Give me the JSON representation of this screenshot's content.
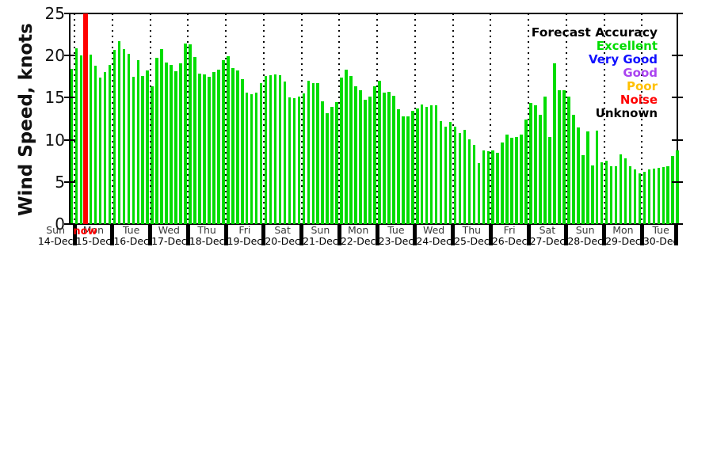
{
  "ylabel": "Wind Speed, knots",
  "now_marker": {
    "label": "now",
    "color": "#FF0000"
  },
  "legend": {
    "title": "Forecast Accuracy",
    "entries": [
      {
        "label": "Excellent",
        "color": "#00DC00"
      },
      {
        "label": "Very Good",
        "color": "#1010FF"
      },
      {
        "label": "Good",
        "color": "#AA44F0"
      },
      {
        "label": "Poor",
        "color": "#FFC000"
      },
      {
        "label": "Noise",
        "color": "#FF0000"
      },
      {
        "label": "Unknown",
        "color": "#000000"
      }
    ]
  },
  "chart_data": {
    "type": "bar",
    "title": "",
    "xlabel": "",
    "ylabel": "Wind Speed, knots",
    "unit": "knots",
    "bar_color": "#00DC00",
    "ylim": [
      0,
      25
    ],
    "yticks": [
      0,
      5,
      10,
      15,
      20,
      25
    ],
    "interval_hours": 3,
    "grid": "vertical-dotted-at-day-boundaries",
    "legend_position": "upper right",
    "days": [
      {
        "day": "Sun",
        "date": "14-Dec",
        "values": [
          18.4
        ]
      },
      {
        "day": "Mon",
        "date": "15-Dec",
        "values": [
          20.9,
          20.0,
          20.5,
          20.1,
          18.8,
          17.4,
          18.0,
          18.9
        ]
      },
      {
        "day": "Tue",
        "date": "16-Dec",
        "values": [
          20.7,
          21.7,
          20.8,
          20.2,
          17.5,
          19.5,
          17.6,
          18.2
        ]
      },
      {
        "day": "Wed",
        "date": "17-Dec",
        "values": [
          16.4,
          19.7,
          20.8,
          19.2,
          18.9,
          18.1,
          19.1,
          21.4
        ]
      },
      {
        "day": "Thu",
        "date": "18-Dec",
        "values": [
          21.3,
          19.8,
          17.9,
          17.8,
          17.5,
          18.0,
          18.3,
          19.5
        ]
      },
      {
        "day": "Fri",
        "date": "19-Dec",
        "values": [
          19.9,
          18.5,
          18.2,
          17.2,
          15.6,
          15.4,
          15.6,
          16.7
        ]
      },
      {
        "day": "Sat",
        "date": "20-Dec",
        "values": [
          17.6,
          17.7,
          17.8,
          17.7,
          16.9,
          15.0,
          14.9,
          15.1
        ]
      },
      {
        "day": "Sun",
        "date": "21-Dec",
        "values": [
          15.5,
          17.0,
          16.7,
          16.7,
          14.6,
          13.2,
          13.9,
          14.5
        ]
      },
      {
        "day": "Mon",
        "date": "22-Dec",
        "values": [
          17.4,
          18.3,
          17.6,
          16.4,
          15.9,
          14.8,
          15.1,
          16.4
        ]
      },
      {
        "day": "Tue",
        "date": "23-Dec",
        "values": [
          17.0,
          15.6,
          15.7,
          15.2,
          13.6,
          12.8,
          12.8,
          13.4
        ]
      },
      {
        "day": "Wed",
        "date": "24-Dec",
        "values": [
          13.7,
          14.2,
          13.9,
          14.1,
          14.1,
          12.2,
          11.6,
          12.1
        ]
      },
      {
        "day": "Thu",
        "date": "25-Dec",
        "values": [
          11.6,
          10.8,
          11.2,
          10.1,
          9.4,
          7.2,
          8.7,
          8.6
        ]
      },
      {
        "day": "Fri",
        "date": "26-Dec",
        "values": [
          8.7,
          8.5,
          9.7,
          10.6,
          10.2,
          10.3,
          10.6,
          12.4
        ]
      },
      {
        "day": "Sat",
        "date": "27-Dec",
        "values": [
          14.4,
          14.1,
          13.0,
          15.1,
          10.3,
          19.1,
          15.9,
          15.9
        ]
      },
      {
        "day": "Sun",
        "date": "28-Dec",
        "values": [
          15.1,
          13.0,
          11.5,
          8.2,
          11.0,
          7.0,
          11.1,
          7.3
        ]
      },
      {
        "day": "Mon",
        "date": "29-Dec",
        "values": [
          7.5,
          6.9,
          6.9,
          8.3,
          7.8,
          6.9,
          6.5,
          6.0
        ]
      },
      {
        "day": "Tue",
        "date": "30-Dec",
        "values": [
          6.2,
          6.5,
          6.6,
          6.7,
          6.8,
          6.9,
          8.1,
          8.7
        ]
      }
    ]
  }
}
